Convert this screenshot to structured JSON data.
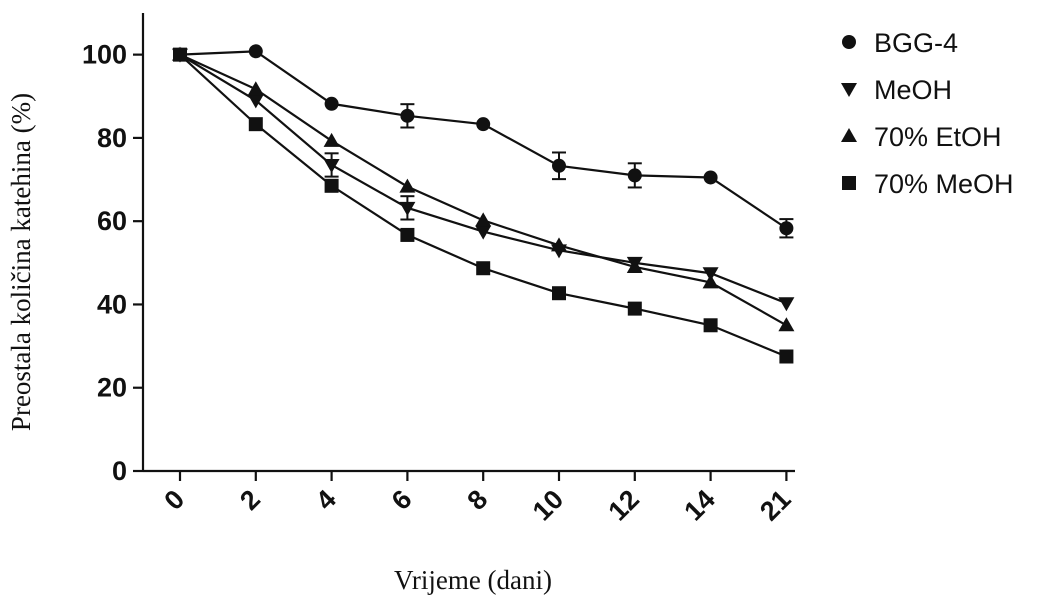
{
  "chart_data": {
    "type": "line",
    "title": "",
    "xlabel": "Vrijeme (dani)",
    "ylabel": "Preostala količina katehina (%)",
    "categories": [
      "0",
      "2",
      "4",
      "6",
      "8",
      "10",
      "12",
      "14",
      "21"
    ],
    "ylim": [
      0,
      110
    ],
    "yticks": [
      0,
      20,
      40,
      60,
      80,
      100
    ],
    "grid": false,
    "legend_position": "top-right",
    "series": [
      {
        "name": "BGG-4",
        "marker": "circle",
        "values": [
          100,
          100.8,
          88.2,
          85.3,
          83.3,
          73.3,
          71,
          70.5,
          58.3
        ],
        "errors": [
          0,
          0,
          0,
          2.8,
          0,
          3.2,
          2.9,
          0,
          2.2
        ]
      },
      {
        "name": "MeOH",
        "marker": "triangle-down",
        "values": [
          100,
          89,
          73.5,
          63.2,
          57.5,
          53,
          50,
          47.5,
          40.3
        ],
        "errors": [
          0,
          0,
          2.8,
          2.8,
          0,
          0,
          0,
          0,
          0
        ]
      },
      {
        "name": "70% EtOH",
        "marker": "triangle-up",
        "values": [
          100,
          91.7,
          79.3,
          68.3,
          60.2,
          54.2,
          49,
          45.3,
          35
        ],
        "errors": [
          0,
          0,
          0,
          0,
          0,
          0,
          0,
          0,
          0
        ]
      },
      {
        "name": "70% MeOH",
        "marker": "square",
        "values": [
          100,
          83.3,
          68.5,
          56.7,
          48.7,
          42.7,
          39,
          35,
          27.5
        ],
        "errors": [
          0,
          0,
          0,
          0,
          0,
          0,
          0,
          0,
          0
        ]
      }
    ]
  }
}
